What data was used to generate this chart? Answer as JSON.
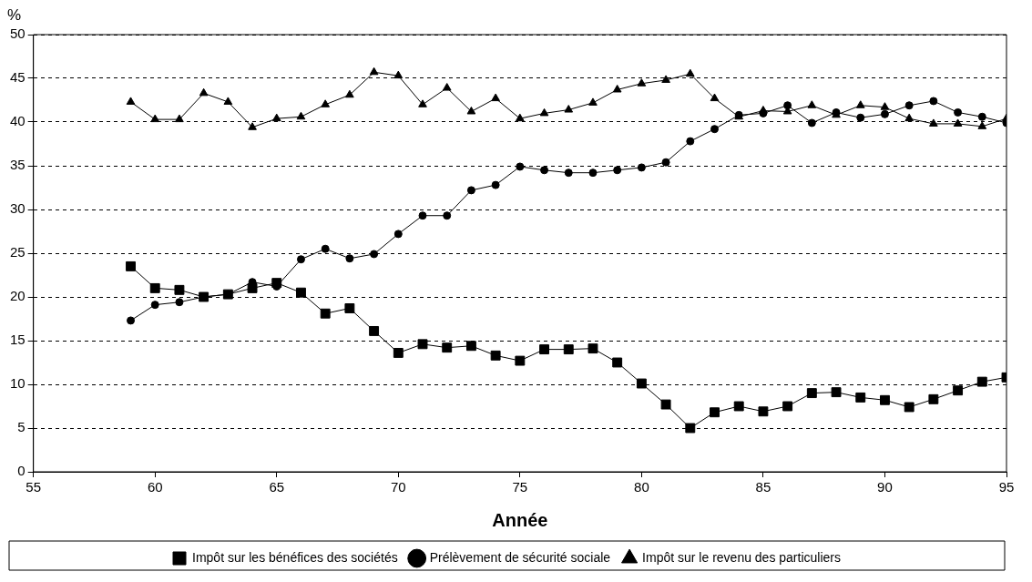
{
  "chart_data": {
    "type": "line",
    "xlabel": "Année",
    "ylabel": "%",
    "x": [
      59,
      60,
      61,
      62,
      63,
      64,
      65,
      66,
      67,
      68,
      69,
      70,
      71,
      72,
      73,
      74,
      75,
      76,
      77,
      78,
      79,
      80,
      81,
      82,
      83,
      84,
      85,
      86,
      87,
      88,
      89,
      90,
      91,
      92,
      93,
      94,
      95
    ],
    "series": [
      {
        "name": "Impôt sur les bénéfices des sociétés",
        "color": "#000000",
        "marker": "square",
        "values": [
          23.5,
          21.0,
          20.8,
          20.0,
          20.3,
          21.0,
          21.6,
          20.5,
          18.1,
          18.7,
          16.1,
          13.6,
          14.6,
          14.2,
          14.4,
          13.3,
          12.7,
          14.0,
          14.0,
          14.1,
          12.5,
          10.1,
          7.7,
          5.0,
          6.8,
          7.5,
          6.9,
          7.5,
          9.0,
          9.1,
          8.5,
          8.2,
          7.4,
          8.3,
          9.3,
          10.3,
          10.8
        ]
      },
      {
        "name": "Prélèvement de sécurité sociale",
        "color": "#000000",
        "marker": "circle",
        "values": [
          17.3,
          19.1,
          19.4,
          20.0,
          20.3,
          21.7,
          21.2,
          24.3,
          25.5,
          24.4,
          24.9,
          27.2,
          29.3,
          29.3,
          32.2,
          32.8,
          34.9,
          34.5,
          34.2,
          34.2,
          34.5,
          34.8,
          35.4,
          37.8,
          39.2,
          40.8,
          41.0,
          41.9,
          39.9,
          41.1,
          40.5,
          40.9,
          41.9,
          42.4,
          41.1,
          40.6,
          39.9
        ]
      },
      {
        "name": "Impôt sur le revenu des particuliers",
        "color": "#000000",
        "marker": "triangle",
        "values": [
          42.3,
          40.3,
          40.3,
          43.3,
          42.3,
          39.4,
          40.4,
          40.6,
          42.0,
          43.1,
          45.7,
          45.3,
          42.0,
          43.9,
          41.2,
          42.7,
          40.4,
          41.0,
          41.4,
          42.2,
          43.7,
          44.4,
          44.8,
          45.5,
          42.7,
          40.6,
          41.3,
          41.2,
          41.9,
          40.8,
          41.9,
          41.7,
          40.4,
          39.8,
          39.8,
          39.5,
          40.4
        ]
      }
    ],
    "xlim": [
      55,
      95
    ],
    "xticks": [
      55,
      60,
      65,
      70,
      75,
      80,
      85,
      90,
      95
    ],
    "ylim": [
      0,
      50
    ],
    "yticks": [
      0,
      5,
      10,
      15,
      20,
      25,
      30,
      35,
      40,
      45,
      50
    ],
    "grid": "y",
    "legend": "bottom",
    "line_style": "solid"
  }
}
